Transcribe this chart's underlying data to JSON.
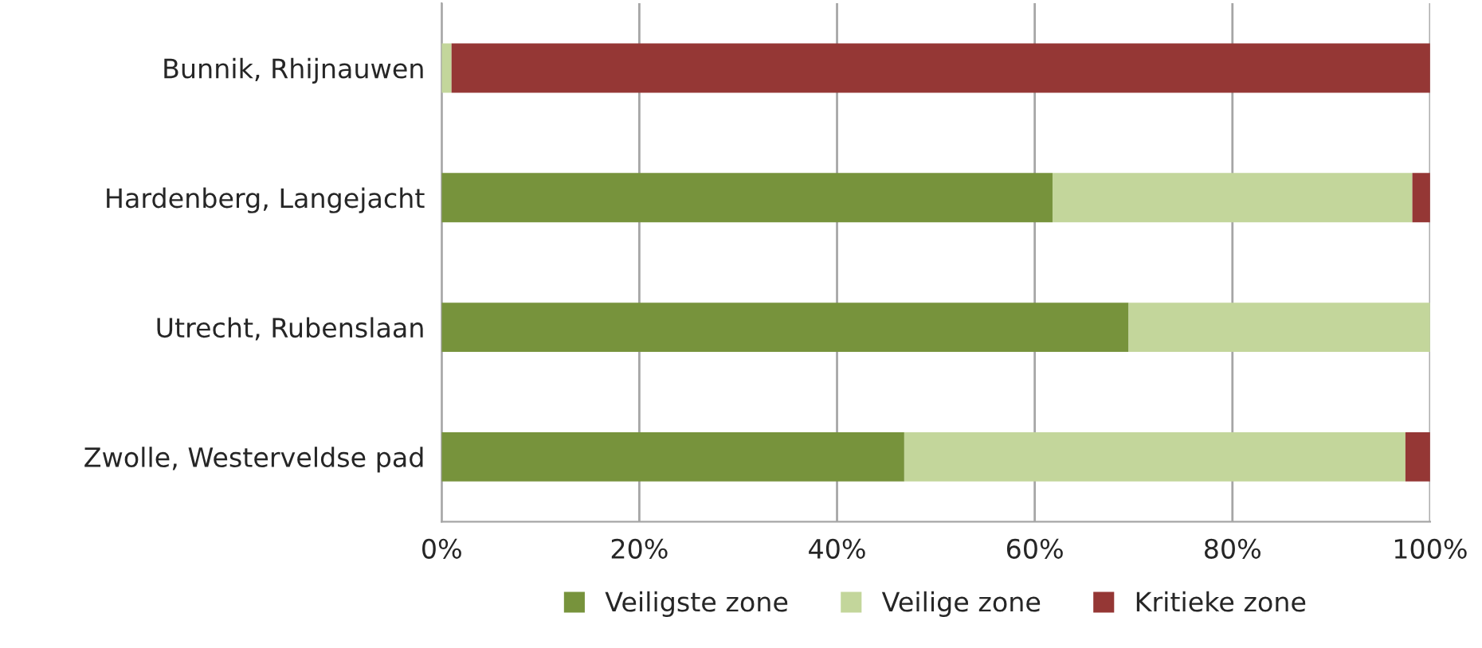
{
  "chart_data": {
    "type": "bar",
    "orientation": "horizontal",
    "stacked": true,
    "categories": [
      "Bunnik, Rhijnauwen",
      "Hardenberg, Langejacht",
      "Utrecht, Rubenslaan",
      "Zwolle, Westerveldse pad"
    ],
    "series": [
      {
        "name": "Veiligste zone",
        "color": "#77933c",
        "values": [
          null,
          61.8,
          69.5,
          46.8
        ]
      },
      {
        "name": "Veilige zone",
        "color": "#c3d69b",
        "values": [
          1.0,
          36.4,
          30.5,
          50.7
        ]
      },
      {
        "name": "Kritieke zone",
        "color": "#953735",
        "values": [
          99.0,
          1.8,
          null,
          2.5
        ]
      }
    ],
    "xlim": [
      0,
      100
    ],
    "xticks": [
      {
        "value": 0,
        "label": "0%"
      },
      {
        "value": 20,
        "label": "20%"
      },
      {
        "value": 40,
        "label": "40%"
      },
      {
        "value": 60,
        "label": "60%"
      },
      {
        "value": 80,
        "label": "80%"
      },
      {
        "value": 100,
        "label": "100%"
      }
    ],
    "grid": "x",
    "legend": "bottom"
  }
}
